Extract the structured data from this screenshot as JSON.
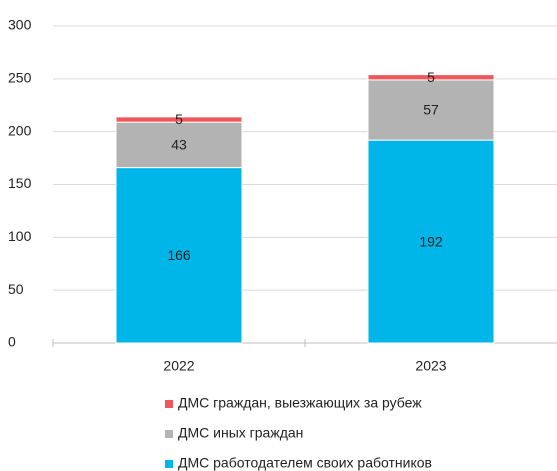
{
  "chart_data": {
    "type": "stacked_bar",
    "categories": [
      "2022",
      "2023"
    ],
    "series": [
      {
        "name": "ДМС работодателем своих работников",
        "color": "#00b5e8",
        "values": [
          166,
          192
        ]
      },
      {
        "name": "ДМС иных граждан",
        "color": "#b3b3b3",
        "values": [
          43,
          57
        ]
      },
      {
        "name": "ДМС граждан, выезжающих за рубеж",
        "color": "#f0565a",
        "values": [
          5,
          5
        ]
      }
    ],
    "ylim": [
      0,
      300
    ],
    "yticks": [
      0,
      50,
      100,
      150,
      200,
      250,
      300
    ],
    "grid": true,
    "legend": "bottom"
  }
}
